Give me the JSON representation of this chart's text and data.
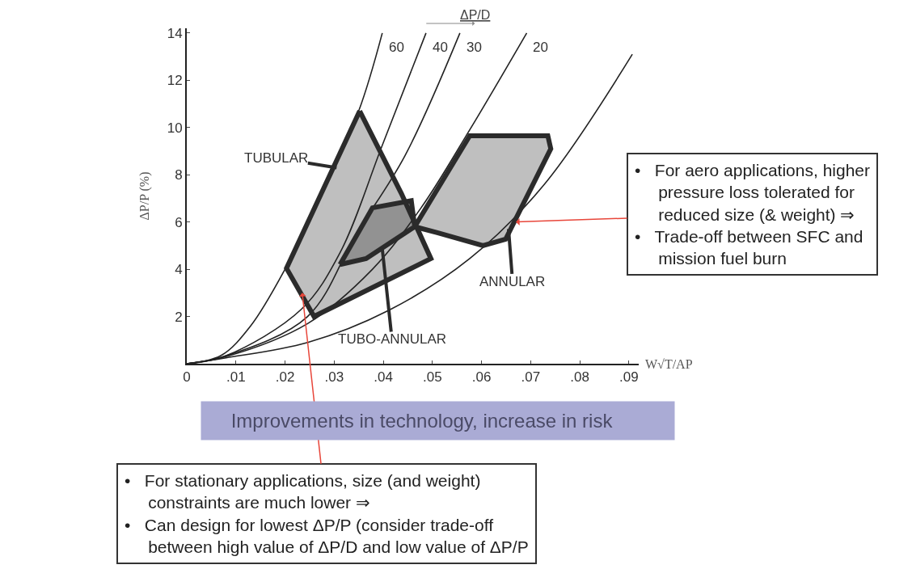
{
  "chart_data": {
    "type": "line",
    "xlabel": "W√T/AP",
    "ylabel": "ΔP/P (%)",
    "legend_title": "ΔP/D",
    "xlim": [
      0,
      0.092
    ],
    "ylim": [
      0,
      14.2
    ],
    "xticks": [
      0,
      {
        "value": 0.01,
        "label": ".01"
      },
      {
        "value": 0.02,
        "label": ".02"
      },
      {
        "value": 0.03,
        "label": ".03"
      },
      {
        "value": 0.04,
        "label": ".04"
      },
      {
        "value": 0.05,
        "label": ".05"
      },
      {
        "value": 0.06,
        "label": ".06"
      },
      {
        "value": 0.07,
        "label": ".07"
      },
      {
        "value": 0.08,
        "label": ".08"
      },
      {
        "value": 0.09,
        "label": ".09"
      }
    ],
    "yticks": [
      2,
      4,
      6,
      8,
      10,
      12,
      14
    ],
    "legend": false,
    "marker": "none",
    "line_style": "solid",
    "series": [
      {
        "name": "60",
        "color": "#222222",
        "x": [
          0,
          0.007,
          0.013,
          0.02,
          0.027,
          0.035,
          0.0398
        ],
        "values": [
          0,
          0.35,
          1.6,
          4.0,
          7.0,
          10.7,
          14
        ]
      },
      {
        "name": "40",
        "color": "#222222",
        "x": [
          0,
          0.008,
          0.0233,
          0.0312,
          0.0398,
          0.0487
        ],
        "values": [
          0,
          0.34,
          2.3,
          4.7,
          9.25,
          14
        ]
      },
      {
        "name": "30",
        "color": "#222222",
        "x": [
          0,
          0.008,
          0.0246,
          0.0345,
          0.0444,
          0.0556
        ],
        "values": [
          0,
          0.33,
          2.0,
          5.5,
          8.8,
          14
        ]
      },
      {
        "name": "20",
        "color": "#222222",
        "x": [
          0,
          0.008,
          0.0246,
          0.0378,
          0.0477,
          0.0576,
          0.0692
        ],
        "values": [
          0,
          0.3,
          1.7,
          4.0,
          6.6,
          9.9,
          14
        ]
      },
      {
        "color": "#222222",
        "x": [
          0,
          0.008,
          0.0246,
          0.0411,
          0.0576,
          0.0728,
          0.0907
        ],
        "values": [
          0,
          0.25,
          0.9,
          2.26,
          4.45,
          7.6,
          13.1
        ]
      },
      {
        "type": "area",
        "color": "#2b2b2b",
        "x": [
          0.0352,
          0.0437,
          0.0497,
          0.0259,
          0.0203,
          0.0352
        ],
        "values": [
          10.7,
          7.2,
          4.45,
          2.0,
          4.04,
          10.7
        ]
      },
      {
        "type": "area",
        "color": "#2b2b2b",
        "x": [
          0.0312,
          0.0378,
          0.0457,
          0.0464,
          0.0365,
          0.0312
        ],
        "values": [
          4.2,
          6.6,
          6.9,
          5.8,
          4.45,
          4.2
        ]
      },
      {
        "type": "area",
        "color": "#2b2b2b",
        "x": [
          0.0464,
          0.0576,
          0.0735,
          0.0741,
          0.0649,
          0.0603,
          0.051,
          0.0464
        ],
        "values": [
          5.8,
          9.65,
          9.65,
          9.1,
          5.27,
          5.0,
          5.55,
          5.8
        ]
      }
    ],
    "annotations": [
      {
        "text": "TUBULAR",
        "x": 0.0305,
        "y": 8.3
      },
      {
        "text": "TUBO-ANNULAR",
        "x": 0.0398,
        "y": 4.86
      },
      {
        "text": "ANNULAR",
        "x": 0.0655,
        "y": 5.7
      },
      {
        "text": "•   For aero applications, higher\n     pressure loss tolerated for\n     reduced size (& weight) ⇒\n•   Trade-off between SFC and\n     mission fuel burn",
        "x": 0.067,
        "y": 6.0
      },
      {
        "text": "•   For stationary applications, size (and weight)\n     constraints are much lower ⇒\n•   Can design for lowest ΔP/P (consider trade-off\n     between high value of ΔP/D and low value of ΔP/P",
        "x": 0.0235,
        "y": 3.0
      },
      "Improvements in technology, increase in risk"
    ]
  }
}
